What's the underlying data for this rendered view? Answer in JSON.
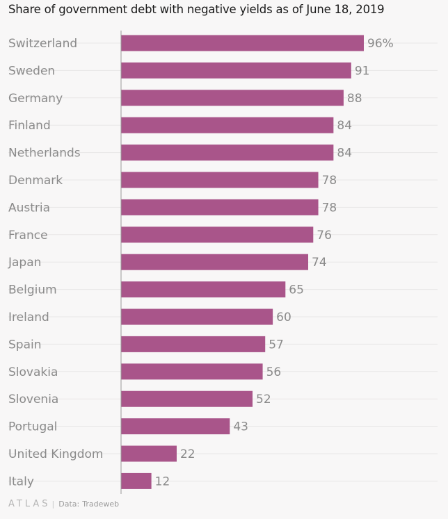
{
  "chart_data": {
    "type": "bar",
    "orientation": "horizontal",
    "title": "Share of government debt with negative yields as of June 18, 2019",
    "categories": [
      "Switzerland",
      "Sweden",
      "Germany",
      "Finland",
      "Netherlands",
      "Denmark",
      "Austria",
      "France",
      "Japan",
      "Belgium",
      "Ireland",
      "Spain",
      "Slovakia",
      "Slovenia",
      "Portugal",
      "United Kingdom",
      "Italy"
    ],
    "values": [
      96,
      91,
      88,
      84,
      84,
      78,
      78,
      76,
      74,
      65,
      60,
      57,
      56,
      52,
      43,
      22,
      12
    ],
    "value_labels": [
      "96%",
      "91",
      "88",
      "84",
      "84",
      "78",
      "78",
      "76",
      "74",
      "65",
      "60",
      "57",
      "56",
      "52",
      "43",
      "22",
      "12"
    ],
    "xlim": [
      0,
      100
    ],
    "bar_color": "#a9558a",
    "grid": true
  },
  "footer": {
    "logo_text": "ATLAS",
    "separator": "|",
    "source_prefix": "Data:",
    "source": "Tradeweb"
  }
}
